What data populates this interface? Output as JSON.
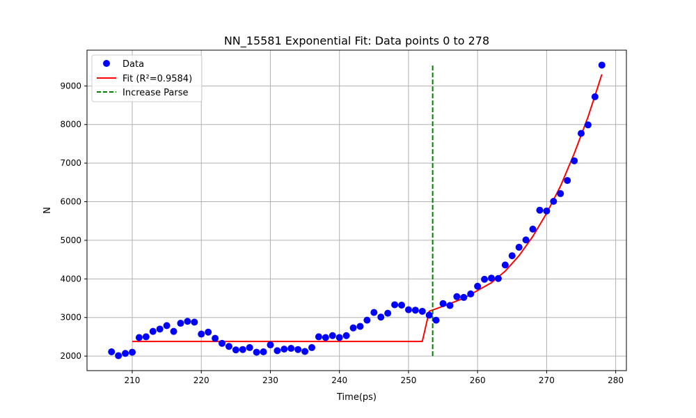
{
  "chart_data": {
    "type": "scatter",
    "title": "NN_15581 Exponential Fit: Data points 0 to 278",
    "xlabel": "Time(ps)",
    "ylabel": "N",
    "xlim": [
      203.45,
      281.55
    ],
    "ylim": [
      1623,
      9927
    ],
    "xticks": [
      210,
      220,
      230,
      240,
      250,
      260,
      270,
      280
    ],
    "yticks": [
      2000,
      3000,
      4000,
      5000,
      6000,
      7000,
      8000,
      9000
    ],
    "grid": true,
    "legend_position": "top-left",
    "series": [
      {
        "name": "Data",
        "kind": "scatter",
        "color": "#0000ff",
        "x": [
          207,
          208,
          209,
          210,
          211,
          212,
          213,
          214,
          215,
          216,
          217,
          218,
          219,
          220,
          221,
          222,
          223,
          224,
          225,
          226,
          227,
          228,
          229,
          230,
          231,
          232,
          233,
          234,
          235,
          236,
          237,
          238,
          239,
          240,
          241,
          242,
          243,
          244,
          245,
          246,
          247,
          248,
          249,
          250,
          251,
          252,
          253,
          254,
          255,
          256,
          257,
          258,
          259,
          260,
          261,
          262,
          263,
          264,
          265,
          266,
          267,
          268,
          269,
          270,
          271,
          272,
          273,
          274,
          275,
          276,
          277,
          278
        ],
        "y": [
          2110,
          2010,
          2070,
          2100,
          2480,
          2500,
          2640,
          2700,
          2790,
          2640,
          2850,
          2900,
          2880,
          2570,
          2620,
          2460,
          2330,
          2250,
          2160,
          2170,
          2220,
          2100,
          2110,
          2290,
          2140,
          2180,
          2200,
          2170,
          2120,
          2220,
          2500,
          2480,
          2530,
          2480,
          2530,
          2730,
          2770,
          2930,
          3130,
          3010,
          3110,
          3330,
          3320,
          3200,
          3190,
          3160,
          3060,
          2930,
          3360,
          3310,
          3540,
          3520,
          3610,
          3810,
          3990,
          4020,
          4010,
          4360,
          4600,
          4820,
          5010,
          5290,
          5780,
          5760,
          6010,
          6210,
          6550,
          7060,
          7770,
          7990,
          8720,
          9540
        ]
      },
      {
        "name": "Fit (R²=0.9584)",
        "kind": "line",
        "color": "#ff0000",
        "x": [
          210,
          252,
          253,
          255,
          258,
          260,
          262,
          264,
          266,
          268,
          270,
          272,
          274,
          276,
          278
        ],
        "y": [
          2380,
          2380,
          3160,
          3290,
          3500,
          3700,
          3900,
          4200,
          4600,
          5100,
          5700,
          6400,
          7250,
          8200,
          9300
        ]
      },
      {
        "name": "Increase Parse",
        "kind": "vline",
        "color": "#008000",
        "x": 253.5,
        "y_range": [
          2000,
          9540
        ]
      }
    ]
  }
}
